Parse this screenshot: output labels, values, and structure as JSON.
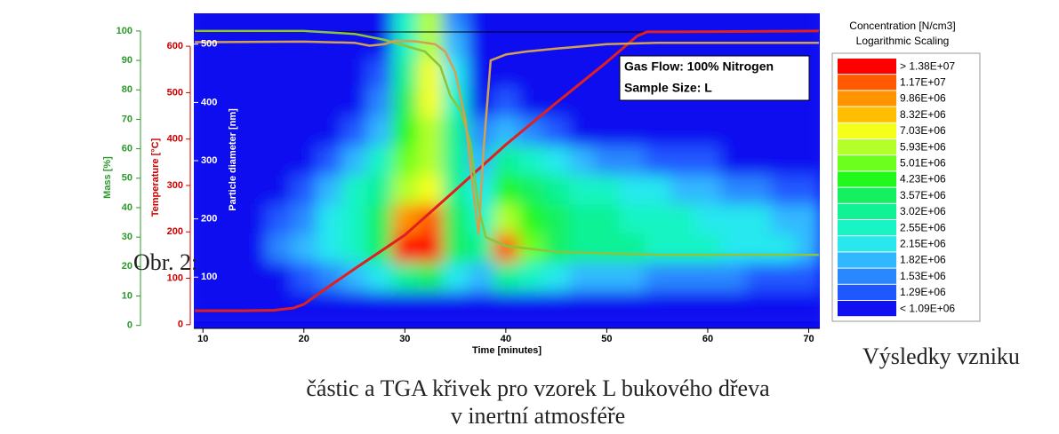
{
  "chart_data": {
    "type": "contour",
    "xlabel": "Time [minutes]",
    "ylabel": "Mass [%]",
    "y2label": "Temperature [°C]",
    "y3label": "Particle diameter [nm]",
    "xlim": [
      9.1,
      71.1
    ],
    "xticks": [
      10,
      20,
      30,
      40,
      50,
      60,
      70
    ],
    "ylim": [
      -1,
      106
    ],
    "yticks": [
      0,
      10,
      20,
      30,
      40,
      50,
      60,
      70,
      80,
      90,
      100
    ],
    "y2lim": [
      -8,
      671
    ],
    "y2ticks": [
      0,
      100,
      200,
      300,
      400,
      500,
      600
    ],
    "y3lim": [
      12,
      553
    ],
    "y3ticks": [
      100,
      200,
      300,
      400,
      500
    ],
    "background": "#1010f0",
    "annotations": [
      "Gas Flow: 100% Nitrogen",
      "Sample Size: L"
    ],
    "legend_title": [
      "Concentration [N/cm3]",
      "Logarithmic Scaling"
    ],
    "levels": [
      {
        "value": 13800000.0,
        "label": "> 1.38E+07",
        "color": "#ff0000"
      },
      {
        "value": 11700000.0,
        "label": "1.17E+07",
        "color": "#ff5a00"
      },
      {
        "value": 9860000.0,
        "label": "9.86E+06",
        "color": "#ff9400"
      },
      {
        "value": 8320000.0,
        "label": "8.32E+06",
        "color": "#ffbe00"
      },
      {
        "value": 7030000.0,
        "label": "7.03E+06",
        "color": "#f4ff1a"
      },
      {
        "value": 5930000.0,
        "label": "5.93E+06",
        "color": "#b4ff2a"
      },
      {
        "value": 5010000.0,
        "label": "5.01E+06",
        "color": "#6cff1e"
      },
      {
        "value": 4230000.0,
        "label": "4.23E+06",
        "color": "#22f81c"
      },
      {
        "value": 3570000.0,
        "label": "3.57E+06",
        "color": "#14f060"
      },
      {
        "value": 3020000.0,
        "label": "3.02E+06",
        "color": "#10f294"
      },
      {
        "value": 2550000.0,
        "label": "2.55E+06",
        "color": "#18f4c4"
      },
      {
        "value": 2150000.0,
        "label": "2.15E+06",
        "color": "#28e8ee"
      },
      {
        "value": 1820000.0,
        "label": "1.82E+06",
        "color": "#30b8ff"
      },
      {
        "value": 1530000.0,
        "label": "1.53E+06",
        "color": "#2a88ff"
      },
      {
        "value": 1290000.0,
        "label": "1.29E+06",
        "color": "#2058ff"
      },
      {
        "value": 1090000.0,
        "label": "< 1.09E+06",
        "color": "#1010f0"
      }
    ],
    "grid_x": [
      10,
      12.5,
      15,
      17.5,
      20,
      22.5,
      25,
      27.5,
      30,
      32.5,
      35,
      37.5,
      40,
      42.5,
      45,
      47.5,
      50,
      52.5,
      55,
      57.5,
      60,
      62.5,
      65,
      67.5,
      70
    ],
    "grid_y": [
      550,
      500,
      450,
      400,
      350,
      300,
      250,
      200,
      150,
      100,
      50
    ],
    "z": [
      [
        1000000.0,
        1000000.0,
        1000000.0,
        1000000.0,
        1000000.0,
        1000000.0,
        1000000.0,
        1000000.0,
        2600000.0,
        6000000.0,
        1600000.0,
        1000000.0,
        1000000.0,
        1000000.0,
        1000000.0,
        1000000.0,
        1000000.0,
        1000000.0,
        1000000.0,
        1000000.0,
        1000000.0,
        1000000.0,
        1000000.0,
        1000000.0,
        1000000.0
      ],
      [
        1000000.0,
        1000000.0,
        1000000.0,
        1000000.0,
        1000000.0,
        1000000.0,
        1000000.0,
        1000000.0,
        2600000.0,
        6000000.0,
        1900000.0,
        1000000.0,
        1000000.0,
        1000000.0,
        1000000.0,
        1000000.0,
        1000000.0,
        1000000.0,
        1000000.0,
        1000000.0,
        1000000.0,
        1000000.0,
        1000000.0,
        1000000.0,
        1000000.0
      ],
      [
        1000000.0,
        1000000.0,
        1000000.0,
        1000000.0,
        1000000.0,
        1000000.0,
        1000000.0,
        1300000.0,
        3100000.0,
        7100000.0,
        2200000.0,
        1000000.0,
        1000000.0,
        1000000.0,
        1000000.0,
        1000000.0,
        1000000.0,
        1000000.0,
        1000000.0,
        1000000.0,
        1000000.0,
        1000000.0,
        1000000.0,
        1000000.0,
        1000000.0
      ],
      [
        1000000.0,
        1000000.0,
        1000000.0,
        1000000.0,
        1000000.0,
        1000000.0,
        1000000.0,
        1600000.0,
        3600000.0,
        7100000.0,
        2600000.0,
        1000000.0,
        1300000.0,
        1000000.0,
        1000000.0,
        1000000.0,
        1000000.0,
        1000000.0,
        1000000.0,
        1000000.0,
        1000000.0,
        1000000.0,
        1000000.0,
        1000000.0,
        1000000.0
      ],
      [
        1000000.0,
        1000000.0,
        1000000.0,
        1000000.0,
        1000000.0,
        1000000.0,
        1300000.0,
        1900000.0,
        4300000.0,
        6000000.0,
        3100000.0,
        1600000.0,
        1900000.0,
        1600000.0,
        1300000.0,
        1000000.0,
        1000000.0,
        1000000.0,
        1000000.0,
        1000000.0,
        1000000.0,
        1000000.0,
        1000000.0,
        1000000.0,
        1000000.0
      ],
      [
        1000000.0,
        1000000.0,
        1000000.0,
        1000000.0,
        1000000.0,
        1300000.0,
        1900000.0,
        2600000.0,
        5100000.0,
        6000000.0,
        3100000.0,
        1900000.0,
        3100000.0,
        2600000.0,
        2200000.0,
        1900000.0,
        1600000.0,
        1600000.0,
        1300000.0,
        1300000.0,
        1300000.0,
        1000000.0,
        1000000.0,
        1000000.0,
        1000000.0
      ],
      [
        1000000.0,
        1000000.0,
        1000000.0,
        1000000.0,
        1300000.0,
        1900000.0,
        2600000.0,
        3100000.0,
        6000000.0,
        7100000.0,
        3100000.0,
        2200000.0,
        4300000.0,
        3600000.0,
        3100000.0,
        2600000.0,
        2600000.0,
        2200000.0,
        2200000.0,
        1900000.0,
        1900000.0,
        1600000.0,
        1600000.0,
        1300000.0,
        1300000.0
      ],
      [
        1000000.0,
        1000000.0,
        1000000.0,
        1300000.0,
        1600000.0,
        2200000.0,
        2600000.0,
        3600000.0,
        9900000.0,
        12000000.0,
        3600000.0,
        2600000.0,
        6000000.0,
        4300000.0,
        3600000.0,
        3100000.0,
        3100000.0,
        2600000.0,
        2600000.0,
        2600000.0,
        2200000.0,
        2200000.0,
        2200000.0,
        1900000.0,
        1900000.0
      ],
      [
        1000000.0,
        1000000.0,
        1000000.0,
        1600000.0,
        1900000.0,
        2200000.0,
        2600000.0,
        3600000.0,
        14000000.0,
        14000000.0,
        3600000.0,
        3100000.0,
        12000000.0,
        5100000.0,
        3600000.0,
        3100000.0,
        3100000.0,
        3100000.0,
        2600000.0,
        2600000.0,
        2600000.0,
        2200000.0,
        2200000.0,
        2200000.0,
        1900000.0
      ],
      [
        1000000.0,
        1000000.0,
        1000000.0,
        1000000.0,
        1300000.0,
        1600000.0,
        1900000.0,
        2200000.0,
        3100000.0,
        3600000.0,
        2200000.0,
        1900000.0,
        3100000.0,
        2600000.0,
        2200000.0,
        1900000.0,
        1900000.0,
        1900000.0,
        1600000.0,
        1600000.0,
        1600000.0,
        1600000.0,
        1300000.0,
        1300000.0,
        1300000.0
      ],
      [
        1000000.0,
        1000000.0,
        1000000.0,
        1000000.0,
        1000000.0,
        1000000.0,
        1000000.0,
        1000000.0,
        1000000.0,
        1000000.0,
        1000000.0,
        1000000.0,
        1000000.0,
        1000000.0,
        1000000.0,
        1000000.0,
        1000000.0,
        1000000.0,
        1000000.0,
        1000000.0,
        1000000.0,
        1000000.0,
        1000000.0,
        1000000.0,
        1000000.0
      ]
    ],
    "series": [
      {
        "color": "#e02020",
        "axis": "y2",
        "x": [
          9.2,
          14,
          17,
          19,
          20,
          22,
          25,
          30,
          35,
          40,
          45,
          50,
          53,
          54,
          56,
          71
        ],
        "values": [
          30,
          30,
          31,
          36,
          44,
          75,
          120,
          193,
          290,
          388,
          478,
          566,
          622,
          631,
          631,
          633
        ]
      },
      {
        "color": "#8cc43a",
        "x": [
          9.2,
          20,
          25,
          28,
          30,
          32,
          33.5,
          34.5,
          35.5,
          36.5,
          37.3,
          38,
          40,
          45,
          50,
          55,
          60,
          71
        ],
        "values": [
          100,
          100,
          99,
          97,
          95,
          93,
          88,
          78,
          73,
          62,
          40,
          30,
          27,
          25,
          24.5,
          24,
          24,
          24
        ]
      },
      {
        "color": "#d2a052",
        "x": [
          9.2,
          20,
          25,
          26.5,
          28,
          29,
          31,
          33,
          34,
          35,
          36,
          36.8,
          37.3,
          37.8,
          38.5,
          40,
          42,
          45,
          50,
          55,
          71
        ],
        "values": [
          96.2,
          96.4,
          96,
          95,
          95.5,
          96.7,
          96.5,
          95.5,
          93,
          86,
          70,
          45,
          31,
          60,
          90,
          92,
          93,
          94,
          95.5,
          96,
          96
        ]
      }
    ]
  },
  "caption": {
    "label": "Obr. 2:",
    "lines": [
      "Výsledky vzniku",
      "částic a TGA křivek pro vzorek L bukového dřeva",
      "v inertní atmosféře"
    ]
  }
}
